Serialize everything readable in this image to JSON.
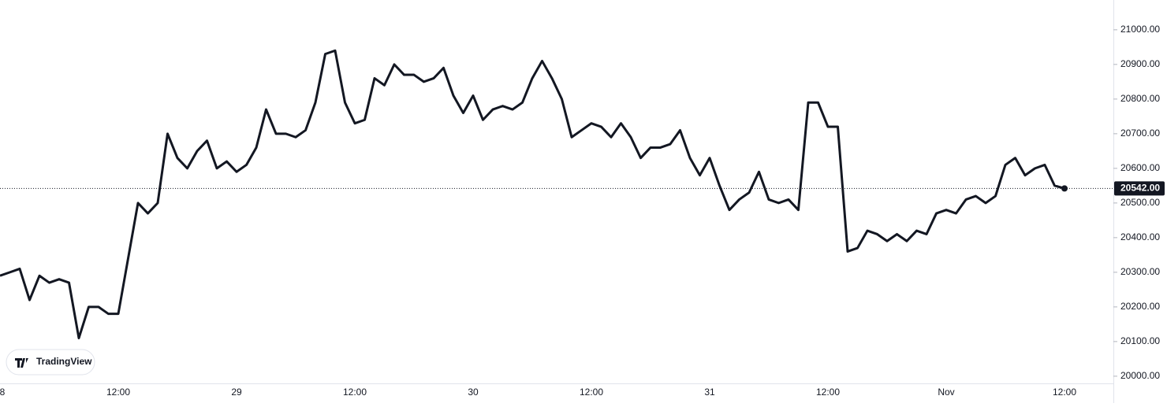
{
  "chart_data": {
    "type": "line",
    "categories": [
      "8",
      null,
      null,
      null,
      null,
      null,
      null,
      null,
      null,
      null,
      null,
      null,
      "12:00",
      null,
      null,
      null,
      null,
      null,
      null,
      null,
      null,
      null,
      null,
      null,
      "29",
      null,
      null,
      null,
      null,
      null,
      null,
      null,
      null,
      null,
      null,
      null,
      "12:00",
      null,
      null,
      null,
      null,
      null,
      null,
      null,
      null,
      null,
      null,
      null,
      "30",
      null,
      null,
      null,
      null,
      null,
      null,
      null,
      null,
      null,
      null,
      null,
      "12:00",
      null,
      null,
      null,
      null,
      null,
      null,
      null,
      null,
      null,
      null,
      null,
      "31",
      null,
      null,
      null,
      null,
      null,
      null,
      null,
      null,
      null,
      null,
      null,
      "12:00",
      null,
      null,
      null,
      null,
      null,
      null,
      null,
      null,
      null,
      null,
      null,
      "Nov",
      null,
      null,
      null,
      null,
      null,
      null,
      null,
      null,
      null,
      null,
      null,
      "12:00"
    ],
    "values": [
      20290,
      20300,
      20310,
      20220,
      20290,
      20270,
      20280,
      20270,
      20110,
      20200,
      20200,
      20180,
      20180,
      20340,
      20500,
      20470,
      20500,
      20700,
      20630,
      20600,
      20650,
      20680,
      20600,
      20620,
      20590,
      20610,
      20660,
      20770,
      20700,
      20700,
      20690,
      20710,
      20790,
      20930,
      20940,
      20790,
      20730,
      20740,
      20860,
      20840,
      20900,
      20870,
      20870,
      20850,
      20860,
      20890,
      20810,
      20760,
      20810,
      20740,
      20770,
      20780,
      20770,
      20790,
      20860,
      20910,
      20860,
      20800,
      20690,
      20710,
      20730,
      20720,
      20690,
      20730,
      20690,
      20630,
      20660,
      20660,
      20670,
      20710,
      20630,
      20580,
      20630,
      20550,
      20480,
      20510,
      20530,
      20590,
      20510,
      20500,
      20510,
      20480,
      20790,
      20790,
      20720,
      20720,
      20360,
      20370,
      20420,
      20410,
      20390,
      20410,
      20390,
      20420,
      20410,
      20470,
      20480,
      20470,
      20510,
      20520,
      20500,
      20520,
      20610,
      20630,
      20580,
      20600,
      20610,
      20550,
      20542
    ],
    "color": "#131722",
    "ylim": [
      19977,
      21086
    ],
    "yticks": [
      {
        "value": 20000,
        "label": "20000.00"
      },
      {
        "value": 20100,
        "label": "20100.00"
      },
      {
        "value": 20200,
        "label": "20200.00"
      },
      {
        "value": 20300,
        "label": "20300.00"
      },
      {
        "value": 20400,
        "label": "20400.00"
      },
      {
        "value": 20500,
        "label": "20500.00"
      },
      {
        "value": 20600,
        "label": "20600.00"
      },
      {
        "value": 20700,
        "label": "20700.00"
      },
      {
        "value": 20800,
        "label": "20800.00"
      },
      {
        "value": 20900,
        "label": "20900.00"
      },
      {
        "value": 21000,
        "label": "21000.00"
      }
    ],
    "price_label": {
      "value": 20542,
      "label": "20542.00"
    },
    "watermark": "TradingView"
  }
}
